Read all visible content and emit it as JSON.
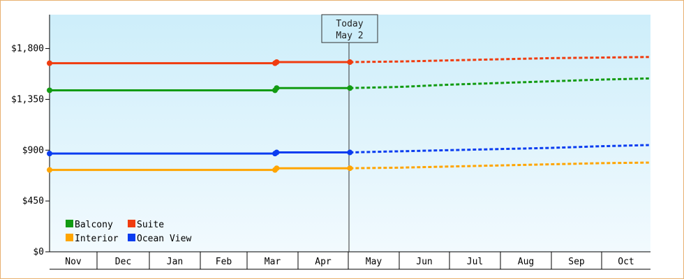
{
  "chart_data": {
    "type": "line",
    "title": "",
    "xlabel": "",
    "ylabel": "",
    "months": [
      "Nov",
      "Dec",
      "Jan",
      "Feb",
      "Mar",
      "Apr",
      "May",
      "Jun",
      "Jul",
      "Aug",
      "Sep",
      "Oct"
    ],
    "y_ticks": [
      "$0",
      "$450",
      "$900",
      "$1,350",
      "$1,800"
    ],
    "ylim": [
      0,
      2100
    ],
    "grid": false,
    "legend_position": "bottom-left",
    "today_marker": {
      "line1": "Today",
      "line2": "May 2"
    },
    "series": [
      {
        "name": "Balcony",
        "color": "#129b12",
        "historical": [
          [
            "Nov 1",
            1430
          ],
          [
            "Mar 18",
            1430
          ],
          [
            "Mar 19",
            1450
          ],
          [
            "May 2",
            1450
          ]
        ],
        "forecast": [
          [
            "May 2",
            1450
          ],
          [
            "Jun 1",
            1460
          ],
          [
            "Jul 1",
            1480
          ],
          [
            "Aug 1",
            1495
          ],
          [
            "Sep 1",
            1510
          ],
          [
            "Oct 1",
            1525
          ],
          [
            "Oct 31",
            1535
          ]
        ]
      },
      {
        "name": "Suite",
        "color": "#f03c0f",
        "historical": [
          [
            "Nov 1",
            1670
          ],
          [
            "Mar 18",
            1670
          ],
          [
            "Mar 19",
            1680
          ],
          [
            "May 2",
            1680
          ]
        ],
        "forecast": [
          [
            "May 2",
            1680
          ],
          [
            "Jun 1",
            1685
          ],
          [
            "Jul 1",
            1695
          ],
          [
            "Aug 1",
            1705
          ],
          [
            "Sep 1",
            1715
          ],
          [
            "Oct 1",
            1720
          ],
          [
            "Oct 31",
            1725
          ]
        ]
      },
      {
        "name": "Interior",
        "color": "#ffa500",
        "historical": [
          [
            "Nov 1",
            725
          ],
          [
            "Mar 18",
            725
          ],
          [
            "Mar 19",
            740
          ],
          [
            "May 2",
            740
          ]
        ],
        "forecast": [
          [
            "May 2",
            740
          ],
          [
            "Jun 1",
            745
          ],
          [
            "Jul 1",
            755
          ],
          [
            "Aug 1",
            765
          ],
          [
            "Sep 1",
            775
          ],
          [
            "Oct 1",
            785
          ],
          [
            "Oct 31",
            790
          ]
        ]
      },
      {
        "name": "Ocean View",
        "color": "#0a3cf0",
        "historical": [
          [
            "Nov 1",
            870
          ],
          [
            "Mar 18",
            870
          ],
          [
            "Mar 19",
            880
          ],
          [
            "May 2",
            880
          ]
        ],
        "forecast": [
          [
            "May 2",
            880
          ],
          [
            "Jun 1",
            890
          ],
          [
            "Jul 1",
            900
          ],
          [
            "Aug 1",
            910
          ],
          [
            "Sep 1",
            920
          ],
          [
            "Oct 1",
            935
          ],
          [
            "Oct 31",
            945
          ]
        ]
      }
    ]
  },
  "colors": {
    "frame_border": "#e8b070",
    "plot_top": "#cdeefa",
    "plot_bottom": "#f2fafe"
  }
}
